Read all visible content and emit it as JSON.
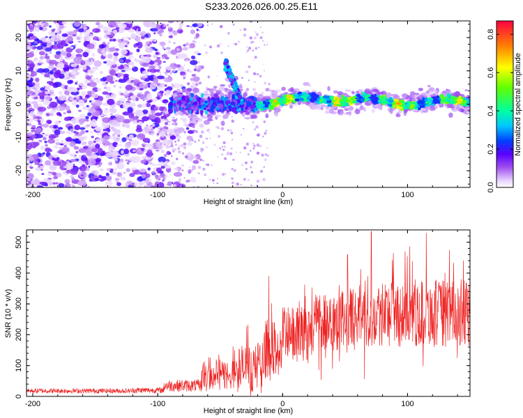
{
  "title": "S233.2026.026.00.25.E11",
  "chart_data": [
    {
      "type": "heatmap",
      "name": "spectrogram",
      "xlabel": "Height of straight line (km)",
      "ylabel": "Frequency (Hz)",
      "xlim": [
        -205,
        150
      ],
      "ylim": [
        -25,
        25
      ],
      "xticks": [
        -200,
        -100,
        0,
        100
      ],
      "yticks": [
        -20,
        -10,
        0,
        10,
        20
      ],
      "xtick_labels": [
        "-200",
        "-100",
        "0",
        "100"
      ],
      "ytick_labels": [
        "-20",
        "-10",
        "0",
        "10",
        "20"
      ],
      "colorbar": {
        "label": "Normalized spectral amplitude",
        "range": [
          0.0,
          0.87
        ],
        "ticks": [
          0.0,
          0.2,
          0.4,
          0.6,
          0.8
        ],
        "tick_labels": [
          "0.0",
          "0.2",
          "0.4",
          "0.6",
          "0.8"
        ]
      },
      "features": [
        {
          "region": "noise",
          "x_range": [
            -205,
            -90
          ],
          "freq_range": [
            -25,
            25
          ],
          "amplitude": 0.1
        },
        {
          "region": "transition",
          "x_range": [
            -90,
            -20
          ],
          "freq_center": 0,
          "amplitude": 0.25
        },
        {
          "region": "ridge",
          "x_range": [
            -40,
            -36
          ],
          "freq_center": 7,
          "amplitude": 0.3
        },
        {
          "region": "signal_band",
          "x_range": [
            -20,
            150
          ],
          "freq_center": 1,
          "freq_width": 2.5,
          "amplitude": 0.65
        }
      ]
    },
    {
      "type": "line",
      "name": "snr",
      "xlabel": "Height of straight line (km)",
      "ylabel": "SNR (10 * v/v)",
      "xlim": [
        -205,
        150
      ],
      "ylim": [
        0,
        540
      ],
      "xticks": [
        -200,
        -100,
        0,
        100
      ],
      "yticks": [
        0,
        100,
        200,
        300,
        400,
        500
      ],
      "xtick_labels": [
        "-200",
        "-100",
        "0",
        "100"
      ],
      "ytick_labels": [
        "0",
        "100",
        "200",
        "300",
        "400",
        "500"
      ],
      "color": "#ee2222",
      "segments": [
        {
          "x": [
            -205,
            -120
          ],
          "mean": 18,
          "spread": 10
        },
        {
          "x": [
            -120,
            -95
          ],
          "mean": 20,
          "spread": 12
        },
        {
          "x": [
            -95,
            -65
          ],
          "mean": 35,
          "spread": 25
        },
        {
          "x": [
            -65,
            -40
          ],
          "mean": 70,
          "spread": 50
        },
        {
          "x": [
            -40,
            -15
          ],
          "mean": 90,
          "spread": 80
        },
        {
          "x": [
            -15,
            0
          ],
          "mean": 150,
          "spread": 100
        },
        {
          "x": [
            0,
            25
          ],
          "mean": 200,
          "spread": 90
        },
        {
          "x": [
            25,
            60
          ],
          "mean": 250,
          "spread": 100
        },
        {
          "x": [
            60,
            150
          ],
          "mean": 270,
          "spread": 110
        }
      ],
      "peaks": [
        {
          "x": -11,
          "y": 390
        },
        {
          "x": 71,
          "y": 535
        },
        {
          "x": 98,
          "y": 470
        },
        {
          "x": 115,
          "y": 530
        },
        {
          "x": 52,
          "y": 460
        }
      ]
    }
  ]
}
